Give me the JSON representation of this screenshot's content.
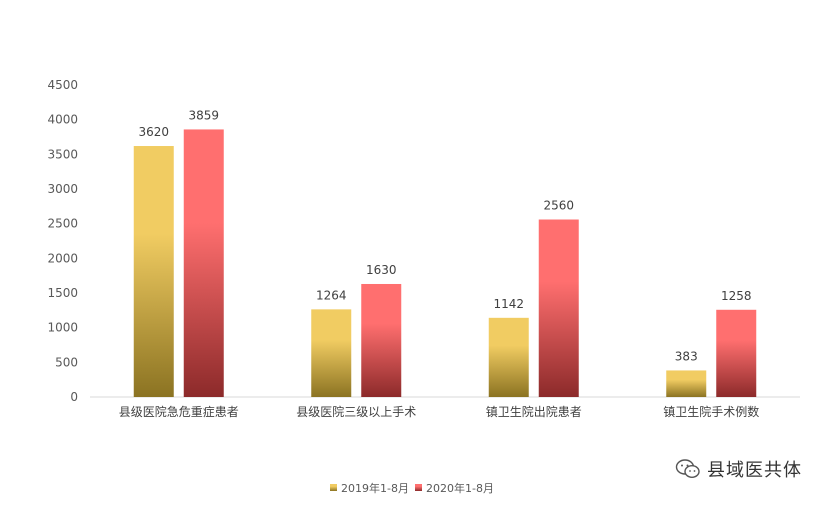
{
  "chart_data": {
    "type": "bar",
    "categories": [
      "县级医院急危重症患者",
      "县级医院三级以上手术",
      "镇卫生院出院患者",
      "镇卫生院手术例数"
    ],
    "series": [
      {
        "name": "2019年1-8月",
        "values": [
          3620,
          1264,
          1142,
          383
        ],
        "color_top": "#f1cc62",
        "color_bottom": "#8b7322"
      },
      {
        "name": "2020年1-8月",
        "values": [
          3859,
          1630,
          2560,
          1258
        ],
        "color_top": "#ff6f6f",
        "color_bottom": "#8c2a2a"
      }
    ],
    "ylim": [
      0,
      4500
    ],
    "yticks": [
      0,
      500,
      1000,
      1500,
      2000,
      2500,
      3000,
      3500,
      4000,
      4500
    ],
    "legend_position": "bottom-center",
    "grid": false
  },
  "watermark": {
    "text": "县域医共体",
    "icon": "wechat-icon"
  }
}
